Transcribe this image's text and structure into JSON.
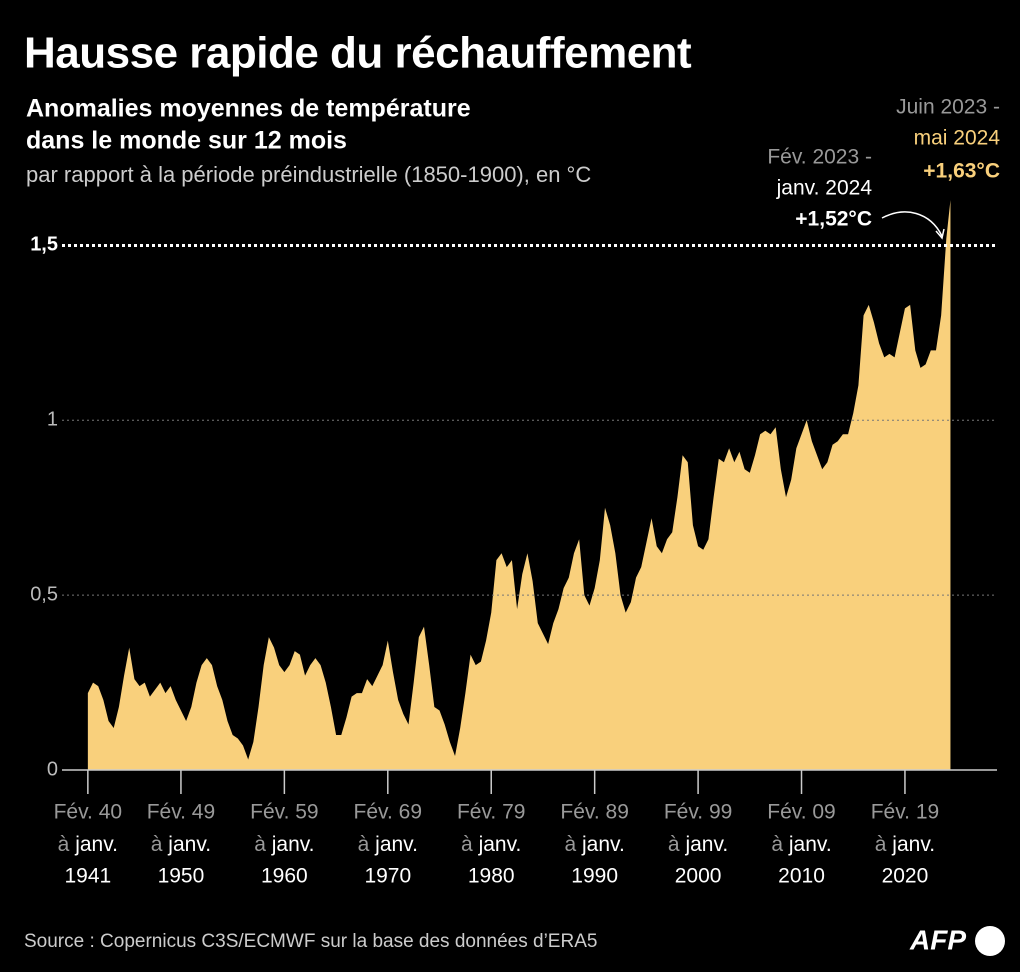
{
  "chart_data": {
    "type": "area",
    "title": "Hausse rapide du réchauffement",
    "subtitle": [
      "Anomalies moyennes de température",
      "dans le monde sur 12 mois"
    ],
    "y_label": "par rapport à la période préindustrielle (1850-1900), en °C",
    "source": "Source : Copernicus C3S/ECMWF sur la base des données d’ERA5",
    "logo": "AFP",
    "color": "#f9d07c",
    "x": [
      1941,
      1941.5,
      1942,
      1942.5,
      1943,
      1943.5,
      1944,
      1944.5,
      1945,
      1945.5,
      1946,
      1946.5,
      1947,
      1947.5,
      1948,
      1948.5,
      1949,
      1949.5,
      1950,
      1950.5,
      1951,
      1951.5,
      1952,
      1952.5,
      1953,
      1953.5,
      1954,
      1954.5,
      1955,
      1955.5,
      1956,
      1956.5,
      1957,
      1957.5,
      1958,
      1958.5,
      1959,
      1959.5,
      1960,
      1960.5,
      1961,
      1961.5,
      1962,
      1962.5,
      1963,
      1963.5,
      1964,
      1964.5,
      1965,
      1965.5,
      1966,
      1966.5,
      1967,
      1967.5,
      1968,
      1968.5,
      1969,
      1969.5,
      1970,
      1970.5,
      1971,
      1971.5,
      1972,
      1972.5,
      1973,
      1973.5,
      1974,
      1974.5,
      1975,
      1975.5,
      1976,
      1976.5,
      1977,
      1977.5,
      1978,
      1978.5,
      1979,
      1979.5,
      1980,
      1980.5,
      1981,
      1981.5,
      1982,
      1982.5,
      1983,
      1983.5,
      1984,
      1984.5,
      1985,
      1985.5,
      1986,
      1986.5,
      1987,
      1987.5,
      1988,
      1988.5,
      1989,
      1989.5,
      1990,
      1990.5,
      1991,
      1991.5,
      1992,
      1992.5,
      1993,
      1993.5,
      1994,
      1994.5,
      1995,
      1995.5,
      1996,
      1996.5,
      1997,
      1997.5,
      1998,
      1998.5,
      1999,
      1999.5,
      2000,
      2000.5,
      2001,
      2001.5,
      2002,
      2002.5,
      2003,
      2003.5,
      2004,
      2004.5,
      2005,
      2005.5,
      2006,
      2006.5,
      2007,
      2007.5,
      2008,
      2008.5,
      2009,
      2009.5,
      2010,
      2010.5,
      2011,
      2011.5,
      2012,
      2012.5,
      2013,
      2013.5,
      2014,
      2014.5,
      2015,
      2015.5,
      2016,
      2016.5,
      2017,
      2017.5,
      2018,
      2018.5,
      2019,
      2019.5,
      2020,
      2020.5,
      2021,
      2021.5,
      2022,
      2022.5,
      2023,
      2023.5,
      2024,
      2024.4
    ],
    "values": [
      0.22,
      0.25,
      0.24,
      0.2,
      0.14,
      0.12,
      0.18,
      0.27,
      0.35,
      0.26,
      0.24,
      0.25,
      0.21,
      0.23,
      0.25,
      0.22,
      0.24,
      0.2,
      0.17,
      0.14,
      0.18,
      0.25,
      0.3,
      0.32,
      0.3,
      0.24,
      0.2,
      0.14,
      0.1,
      0.09,
      0.07,
      0.03,
      0.08,
      0.18,
      0.3,
      0.38,
      0.35,
      0.3,
      0.28,
      0.3,
      0.34,
      0.33,
      0.27,
      0.3,
      0.32,
      0.3,
      0.25,
      0.18,
      0.1,
      0.1,
      0.15,
      0.21,
      0.22,
      0.22,
      0.26,
      0.24,
      0.27,
      0.3,
      0.37,
      0.28,
      0.2,
      0.16,
      0.13,
      0.25,
      0.38,
      0.41,
      0.3,
      0.18,
      0.17,
      0.13,
      0.08,
      0.04,
      0.12,
      0.22,
      0.33,
      0.3,
      0.31,
      0.37,
      0.45,
      0.6,
      0.62,
      0.58,
      0.6,
      0.46,
      0.56,
      0.62,
      0.54,
      0.42,
      0.39,
      0.36,
      0.42,
      0.46,
      0.52,
      0.55,
      0.62,
      0.66,
      0.5,
      0.47,
      0.52,
      0.6,
      0.75,
      0.7,
      0.62,
      0.5,
      0.45,
      0.48,
      0.55,
      0.58,
      0.65,
      0.72,
      0.64,
      0.62,
      0.66,
      0.68,
      0.78,
      0.9,
      0.88,
      0.7,
      0.64,
      0.63,
      0.66,
      0.78,
      0.89,
      0.88,
      0.92,
      0.88,
      0.91,
      0.86,
      0.85,
      0.9,
      0.96,
      0.97,
      0.96,
      0.98,
      0.86,
      0.78,
      0.83,
      0.92,
      0.96,
      1.0,
      0.94,
      0.9,
      0.86,
      0.88,
      0.93,
      0.94,
      0.96,
      0.96,
      1.02,
      1.1,
      1.3,
      1.33,
      1.28,
      1.22,
      1.18,
      1.19,
      1.18,
      1.25,
      1.32,
      1.33,
      1.2,
      1.15,
      1.16,
      1.2,
      1.2,
      1.3,
      1.52,
      1.63
    ],
    "xlim": [
      1938.5,
      2028.9
    ],
    "xticks": [
      {
        "value": 1941,
        "label": [
          "Fév. 40",
          "à",
          "janv.",
          "1941"
        ]
      },
      {
        "value": 1950,
        "label": [
          "Fév. 49",
          "à",
          "janv.",
          "1950"
        ]
      },
      {
        "value": 1960,
        "label": [
          "Fév. 59",
          "à",
          "janv.",
          "1960"
        ]
      },
      {
        "value": 1970,
        "label": [
          "Fév. 69",
          "à",
          "janv.",
          "1970"
        ]
      },
      {
        "value": 1980,
        "label": [
          "Fév. 79",
          "à",
          "janv.",
          "1980"
        ]
      },
      {
        "value": 1990,
        "label": [
          "Fév. 89",
          "à",
          "janv.",
          "1990"
        ]
      },
      {
        "value": 2000,
        "label": [
          "Fév. 99",
          "à",
          "janv.",
          "2000"
        ]
      },
      {
        "value": 2010,
        "label": [
          "Fév. 09",
          "à",
          "janv.",
          "2010"
        ]
      },
      {
        "value": 2020,
        "label": [
          "Fév. 19",
          "à",
          "janv.",
          "2020"
        ]
      }
    ],
    "ylim": [
      0,
      1.65
    ],
    "yticks": [
      0,
      {
        "value": 0.5,
        "label": "0,5"
      },
      1,
      {
        "value": 1.5,
        "label": "1,5"
      }
    ],
    "grid": true,
    "annotations": [
      {
        "lines": [
          "Fév. 2023 -",
          "janv. 2024",
          "+1,52°C"
        ]
      },
      {
        "lines": [
          "Juin 2023 -",
          "mai 2024",
          "+1,63°C"
        ]
      }
    ]
  }
}
